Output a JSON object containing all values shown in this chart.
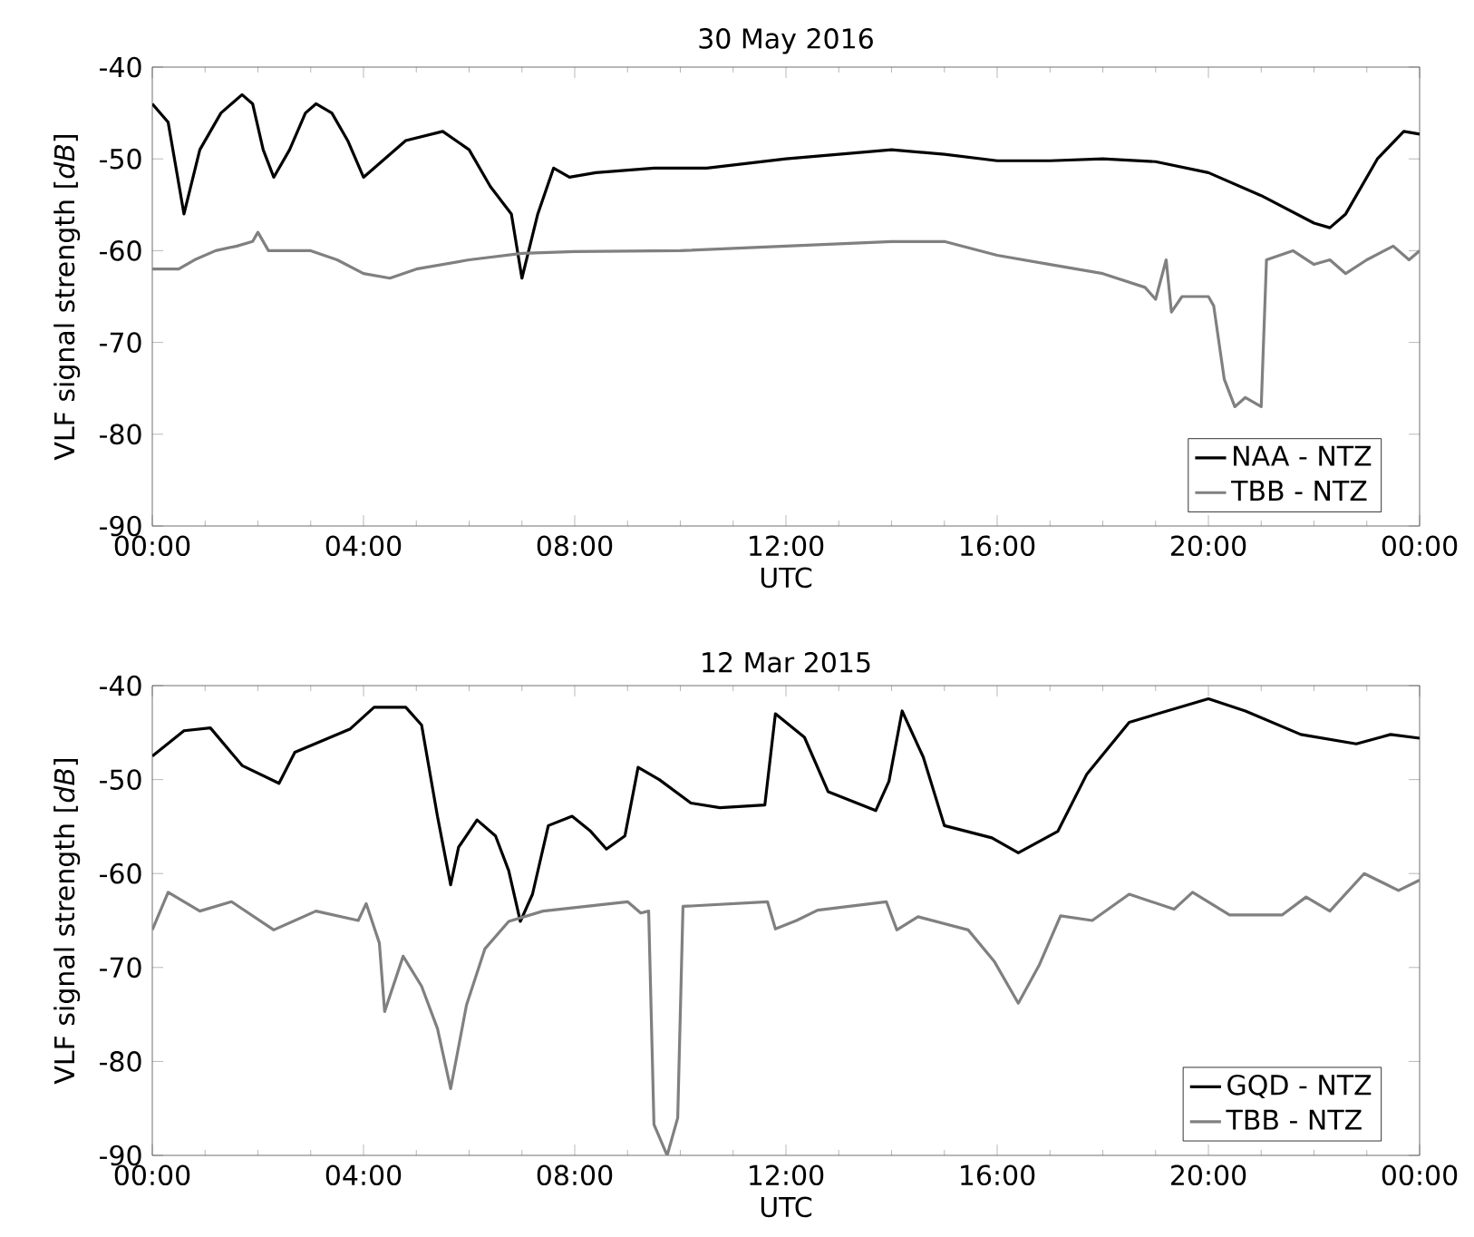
{
  "chart_data": [
    {
      "type": "line",
      "title": "30 May 2016",
      "xlabel": "UTC",
      "ylabel": "VLF signal strength [*dB*]",
      "xlim": [
        0,
        24
      ],
      "xticks": [
        {
          "value": 0,
          "label": "00:00"
        },
        {
          "value": 4,
          "label": "04:00"
        },
        {
          "value": 8,
          "label": "08:00"
        },
        {
          "value": 12,
          "label": "12:00"
        },
        {
          "value": 16,
          "label": "16:00"
        },
        {
          "value": 20,
          "label": "20:00"
        },
        {
          "value": 24,
          "label": "00:00"
        }
      ],
      "ylim": [
        -90,
        -40
      ],
      "yticks": [
        -90,
        -80,
        -70,
        -60,
        -50,
        -40
      ],
      "legend": "bottom right",
      "series": [
        {
          "name": "NAA - NTZ",
          "color": "#000000",
          "x": [
            0,
            0.3,
            0.6,
            0.9,
            1.3,
            1.5,
            1.7,
            1.9,
            2.1,
            2.3,
            2.6,
            2.9,
            3.1,
            3.4,
            3.7,
            4.0,
            4.4,
            4.8,
            5.5,
            6.0,
            6.4,
            6.8,
            7.0,
            7.3,
            7.6,
            7.9,
            8.4,
            9.5,
            10.5,
            12,
            13,
            14,
            15,
            16,
            17,
            18,
            19,
            20,
            21,
            22,
            22.3,
            22.6,
            23.2,
            23.7,
            24
          ],
          "values": [
            -44,
            -46,
            -56,
            -49,
            -45,
            -44,
            -43,
            -44,
            -49,
            -52,
            -49,
            -45,
            -44,
            -45,
            -48,
            -52,
            -50,
            -48,
            -47,
            -49,
            -53,
            -56,
            -63,
            -56,
            -51,
            -52,
            -51.5,
            -51,
            -51,
            -50,
            -49.5,
            -49,
            -49.5,
            -50.2,
            -50.2,
            -50,
            -50.3,
            -51.5,
            -54,
            -57,
            -57.5,
            -56,
            -50,
            -47,
            -47.3
          ]
        },
        {
          "name": "TBB - NTZ",
          "color": "#808080",
          "x": [
            0,
            0.5,
            0.8,
            1.2,
            1.6,
            1.9,
            2.0,
            2.2,
            2.5,
            3.0,
            3.5,
            4.0,
            4.5,
            5.0,
            6.0,
            7.0,
            8.0,
            10,
            12,
            14,
            15,
            16,
            17,
            18,
            18.8,
            19.0,
            19.2,
            19.3,
            19.5,
            20.0,
            20.1,
            20.3,
            20.5,
            20.7,
            21.0,
            21.1,
            21.6,
            22,
            22.3,
            22.6,
            23,
            23.5,
            23.8,
            24
          ],
          "values": [
            -62,
            -62,
            -61,
            -60,
            -59.5,
            -59,
            -58,
            -60,
            -60,
            -60,
            -61,
            -62.5,
            -63,
            -62,
            -61,
            -60.3,
            -60.1,
            -60,
            -59.5,
            -59,
            -59,
            -60.5,
            -61.5,
            -62.5,
            -64,
            -65.3,
            -61,
            -66.7,
            -65,
            -65,
            -66,
            -74,
            -77,
            -76,
            -77,
            -61,
            -60,
            -61.5,
            -61,
            -62.5,
            -61,
            -59.5,
            -61,
            -60
          ]
        }
      ]
    },
    {
      "type": "line",
      "title": "12 Mar 2015",
      "xlabel": "UTC",
      "ylabel": "VLF signal strength [*dB*]",
      "xlim": [
        0,
        24
      ],
      "xticks": [
        {
          "value": 0,
          "label": "00:00"
        },
        {
          "value": 4,
          "label": "04:00"
        },
        {
          "value": 8,
          "label": "08:00"
        },
        {
          "value": 12,
          "label": "12:00"
        },
        {
          "value": 16,
          "label": "16:00"
        },
        {
          "value": 20,
          "label": "20:00"
        },
        {
          "value": 24,
          "label": "00:00"
        }
      ],
      "ylim": [
        -90,
        -40
      ],
      "yticks": [
        -90,
        -80,
        -70,
        -60,
        -50,
        -40
      ],
      "legend": "bottom right",
      "series": [
        {
          "name": "GQD - NTZ",
          "color": "#000000",
          "x": [
            0,
            0.6,
            1.1,
            1.7,
            2.4,
            2.7,
            3.75,
            4.2,
            4.8,
            5.1,
            5.4,
            5.65,
            5.8,
            6.15,
            6.5,
            6.75,
            6.97,
            7.2,
            7.5,
            7.95,
            8.3,
            8.6,
            8.95,
            9.2,
            9.6,
            10.2,
            10.75,
            11.6,
            11.8,
            12.35,
            12.8,
            13.7,
            13.95,
            14.2,
            14.6,
            15.0,
            15.9,
            16.4,
            17.15,
            17.7,
            18.5,
            20.0,
            20.7,
            21.75,
            22.8,
            23.45,
            24
          ],
          "values": [
            -47.5,
            -44.8,
            -44.5,
            -48.5,
            -50.4,
            -47.1,
            -44.6,
            -42.3,
            -42.3,
            -44.2,
            -53.9,
            -61.2,
            -57.2,
            -54.3,
            -56,
            -59.7,
            -65.1,
            -62.2,
            -54.9,
            -53.9,
            -55.5,
            -57.4,
            -56,
            -48.7,
            -50,
            -52.5,
            -53,
            -52.7,
            -43,
            -45.5,
            -51.3,
            -53.3,
            -50.2,
            -42.7,
            -47.6,
            -54.9,
            -56.2,
            -57.8,
            -55.5,
            -49.4,
            -43.9,
            -41.4,
            -42.7,
            -45.2,
            -46.2,
            -45.2,
            -45.6
          ]
        },
        {
          "name": "TBB - NTZ",
          "color": "#808080",
          "x": [
            0,
            0.3,
            0.9,
            1.5,
            2.3,
            3.1,
            3.9,
            4.05,
            4.3,
            4.4,
            4.75,
            5.1,
            5.4,
            5.65,
            5.95,
            6.3,
            6.75,
            7.4,
            9.0,
            9.25,
            9.4,
            9.5,
            9.75,
            9.95,
            10.05,
            11.65,
            11.8,
            12.2,
            12.6,
            13.9,
            14.1,
            14.5,
            15.45,
            15.95,
            16.4,
            16.8,
            17.2,
            17.8,
            18.5,
            19.35,
            19.7,
            20.4,
            21.4,
            21.85,
            22.3,
            22.95,
            23.6,
            24
          ],
          "values": [
            -66,
            -62,
            -64,
            -63,
            -66,
            -64,
            -65,
            -63.2,
            -67.4,
            -74.7,
            -68.8,
            -72,
            -76.5,
            -82.9,
            -74,
            -68,
            -65.1,
            -64,
            -63,
            -64.2,
            -64,
            -86.7,
            -90,
            -86,
            -63.5,
            -63,
            -65.9,
            -65,
            -63.9,
            -63,
            -66,
            -64.6,
            -66,
            -69.4,
            -73.8,
            -69.7,
            -64.5,
            -65,
            -62.2,
            -63.8,
            -62,
            -64.4,
            -64.4,
            -62.5,
            -64,
            -60,
            -61.8,
            -60.7
          ]
        }
      ]
    }
  ]
}
